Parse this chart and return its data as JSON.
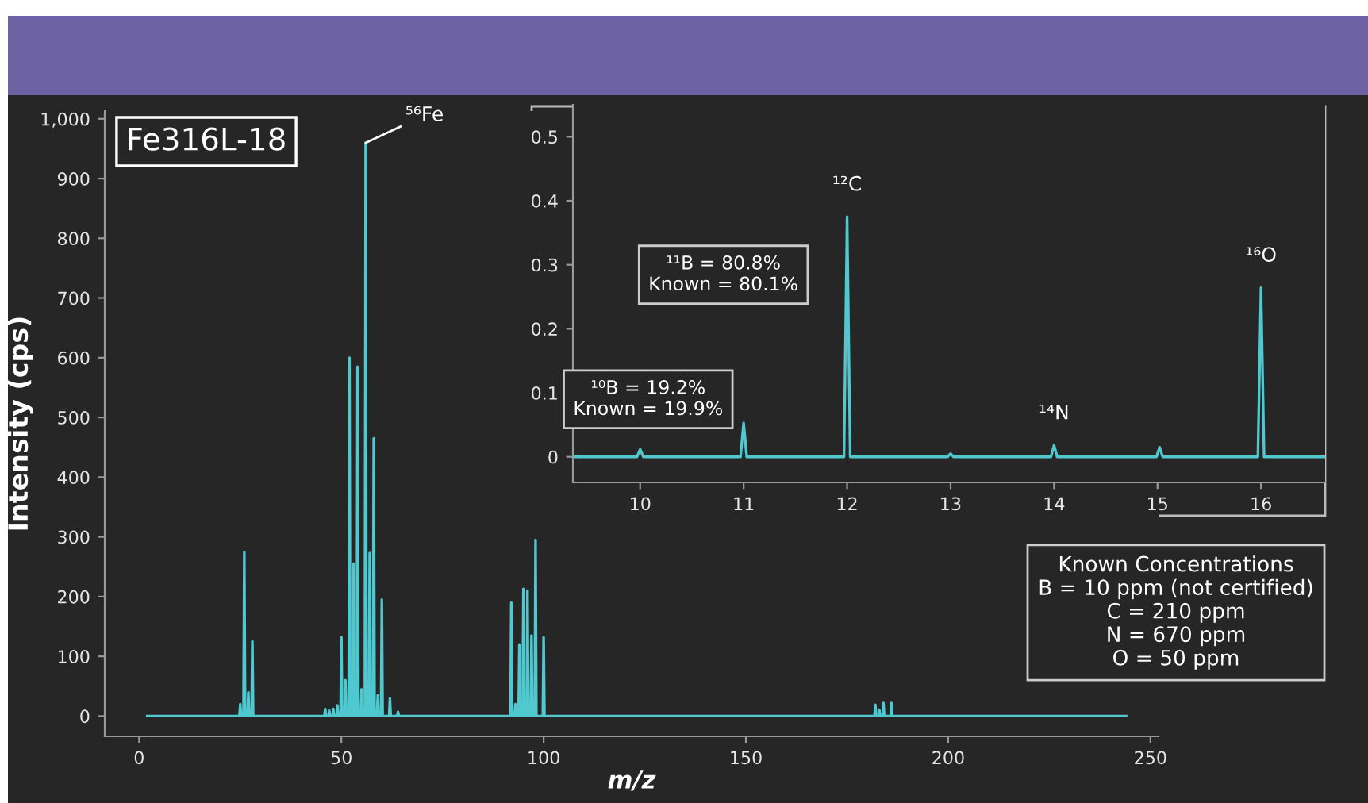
{
  "chart_data": [
    {
      "type": "line",
      "title": "Fe316L-18",
      "xlabel": "m/z",
      "ylabel": "Intensity (cps)",
      "xlim": [
        -8.5,
        252
      ],
      "ylim": [
        -34,
        1013
      ],
      "xticks": [
        0,
        50,
        100,
        150,
        200,
        250
      ],
      "yticks": [
        0,
        100,
        200,
        300,
        400,
        500,
        600,
        700,
        800,
        900,
        {
          "value": 1000,
          "label": "1,000"
        }
      ],
      "grid": false,
      "legend": false,
      "series": [
        {
          "color": "#4fc8cf",
          "x": [
            2,
            24.8,
            25,
            25.2,
            25.8,
            26,
            26.2,
            26.8,
            27,
            27.2,
            27.8,
            28,
            28.2,
            45.8,
            46,
            46.2,
            46.8,
            47,
            47.2,
            47.8,
            48,
            48.2,
            48.8,
            49,
            49.2,
            49.8,
            50,
            50.2,
            50.8,
            51,
            51.2,
            51.8,
            52,
            52.2,
            52.8,
            53,
            53.2,
            53.8,
            54,
            54.2,
            54.8,
            55,
            55.2,
            55.8,
            56,
            56.2,
            56.8,
            57,
            57.2,
            57.8,
            58,
            58.2,
            58.8,
            59,
            59.2,
            59.8,
            60,
            60.2,
            61.8,
            62,
            62.2,
            63.8,
            64,
            64.2,
            91.8,
            92,
            92.2,
            92.8,
            93,
            93.2,
            93.8,
            94,
            94.2,
            94.8,
            95,
            95.2,
            95.8,
            96,
            96.2,
            96.8,
            97,
            97.2,
            97.8,
            98,
            98.2,
            99.8,
            100,
            100.2,
            181.8,
            182,
            182.2,
            182.8,
            183,
            183.2,
            183.8,
            184,
            184.2,
            185.8,
            186,
            186.2,
            244
          ],
          "values": [
            0,
            0,
            20,
            0,
            0,
            275,
            0,
            0,
            40,
            0,
            0,
            125,
            0,
            0,
            12,
            0,
            0,
            10,
            0,
            0,
            12,
            0,
            0,
            18,
            0,
            0,
            132,
            0,
            0,
            60,
            0,
            0,
            600,
            0,
            0,
            255,
            0,
            0,
            585,
            0,
            0,
            45,
            0,
            0,
            960,
            0,
            0,
            273,
            0,
            0,
            465,
            0,
            0,
            35,
            0,
            0,
            195,
            0,
            0,
            30,
            0,
            0,
            7,
            0,
            0,
            190,
            0,
            0,
            20,
            0,
            0,
            120,
            0,
            0,
            213,
            0,
            0,
            210,
            0,
            0,
            135,
            0,
            0,
            295,
            0,
            0,
            132,
            0,
            0,
            19,
            0,
            0,
            10,
            0,
            0,
            22,
            0,
            0,
            22,
            0,
            0
          ]
        }
      ],
      "annotations": [
        {
          "text": "⁵⁶Fe",
          "x": 56,
          "y": 960
        },
        "Known Concentrations\nB = 10 ppm (not certified)\nC = 210 ppm\nN = 670 ppm\nO = 50 ppm"
      ]
    },
    {
      "type": "line",
      "xlim": [
        9.35,
        16.62
      ],
      "ylim": [
        -0.04,
        0.55
      ],
      "xticks": [
        10,
        11,
        12,
        13,
        14,
        15,
        16
      ],
      "yticks": [
        0,
        0.1,
        0.2,
        0.3,
        0.4,
        0.5
      ],
      "grid": false,
      "legend": false,
      "series": [
        {
          "color": "#4fc8cf",
          "x": [
            9.35,
            9.97,
            10,
            10.03,
            10.97,
            11,
            11.03,
            11.97,
            12,
            12.03,
            12.97,
            13,
            13.03,
            13.97,
            14,
            14.03,
            14.99,
            15.02,
            15.05,
            15.97,
            16,
            16.03,
            16.62
          ],
          "values": [
            0,
            0,
            0.012,
            0,
            0,
            0.053,
            0,
            0,
            0.375,
            0,
            0,
            0.005,
            0,
            0,
            0.018,
            0,
            0,
            0.015,
            0,
            0,
            0.264,
            0,
            0
          ]
        }
      ],
      "annotations": [
        {
          "text": "¹²C",
          "x": 12,
          "y": 0.375
        },
        {
          "text": "¹⁴N",
          "x": 14,
          "y": 0.018
        },
        {
          "text": "¹⁶O",
          "x": 16,
          "y": 0.264
        },
        "¹¹B = 80.8%\nKnown = 80.1%",
        "¹⁰B = 19.2%\nKnown = 19.9%"
      ]
    }
  ]
}
